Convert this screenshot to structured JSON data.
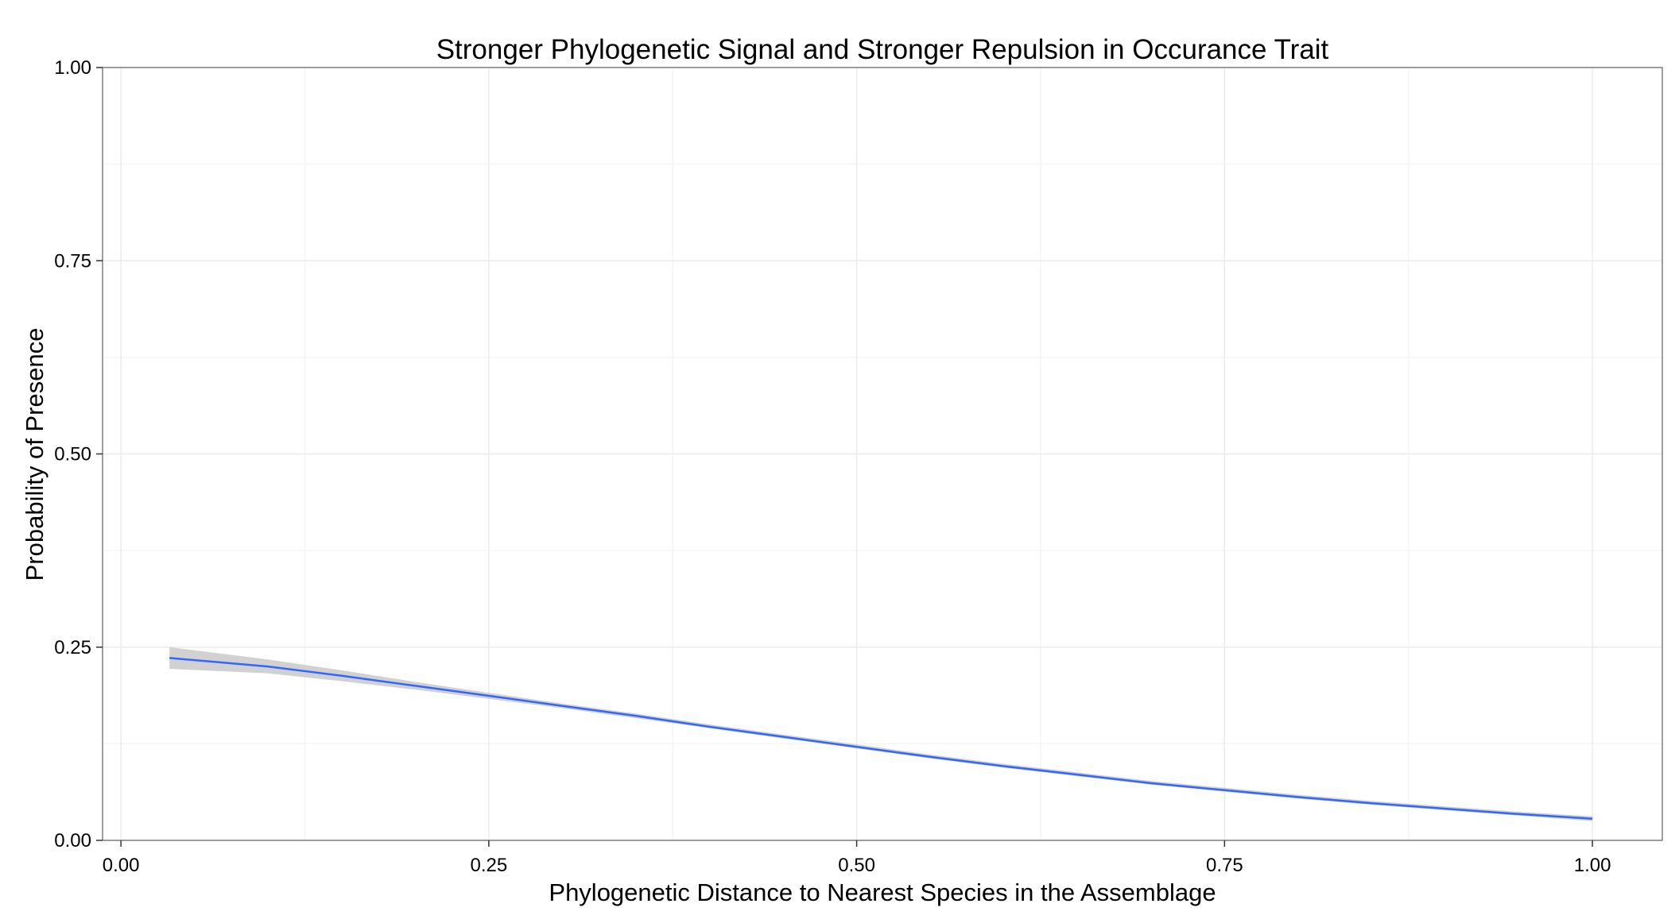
{
  "chart_data": {
    "type": "line",
    "title": "Stronger Phylogenetic Signal and Stronger Repulsion in Occurance Trait",
    "xlabel": "Phylogenetic Distance to Nearest Species in the Assemblage",
    "ylabel": "Probability of Presence",
    "xlim": [
      -0.0125,
      1.0475
    ],
    "ylim": [
      0,
      1
    ],
    "x_ticks": [
      0,
      0.25,
      0.5,
      0.75,
      1
    ],
    "x_tick_labels": [
      "0.00",
      "0.25",
      "0.50",
      "0.75",
      "1.00"
    ],
    "y_ticks": [
      0,
      0.25,
      0.5,
      0.75,
      1
    ],
    "y_tick_labels": [
      "0.00",
      "0.25",
      "0.50",
      "0.75",
      "1.00"
    ],
    "grid": true,
    "legend": "none",
    "series": [
      {
        "color": "#3366ff",
        "x": [
          0.033,
          0.1,
          0.15,
          0.2,
          0.25,
          0.3,
          0.35,
          0.4,
          0.45,
          0.5,
          0.55,
          0.6,
          0.65,
          0.7,
          0.75,
          0.8,
          0.85,
          0.9,
          0.95,
          1.0
        ],
        "y": [
          0.236,
          0.225,
          0.213,
          0.2,
          0.187,
          0.174,
          0.161,
          0.147,
          0.134,
          0.121,
          0.108,
          0.096,
          0.085,
          0.074,
          0.065,
          0.056,
          0.048,
          0.041,
          0.034,
          0.028
        ],
        "ci_lower": [
          0.222,
          0.216,
          0.206,
          0.195,
          0.183,
          0.171,
          0.158,
          0.145,
          0.132,
          0.119,
          0.106,
          0.094,
          0.083,
          0.072,
          0.063,
          0.054,
          0.046,
          0.039,
          0.032,
          0.025
        ],
        "ci_upper": [
          0.25,
          0.234,
          0.22,
          0.205,
          0.191,
          0.177,
          0.164,
          0.15,
          0.137,
          0.124,
          0.111,
          0.099,
          0.088,
          0.077,
          0.068,
          0.059,
          0.051,
          0.044,
          0.037,
          0.031
        ],
        "ci_color": "#cccccc"
      }
    ]
  }
}
